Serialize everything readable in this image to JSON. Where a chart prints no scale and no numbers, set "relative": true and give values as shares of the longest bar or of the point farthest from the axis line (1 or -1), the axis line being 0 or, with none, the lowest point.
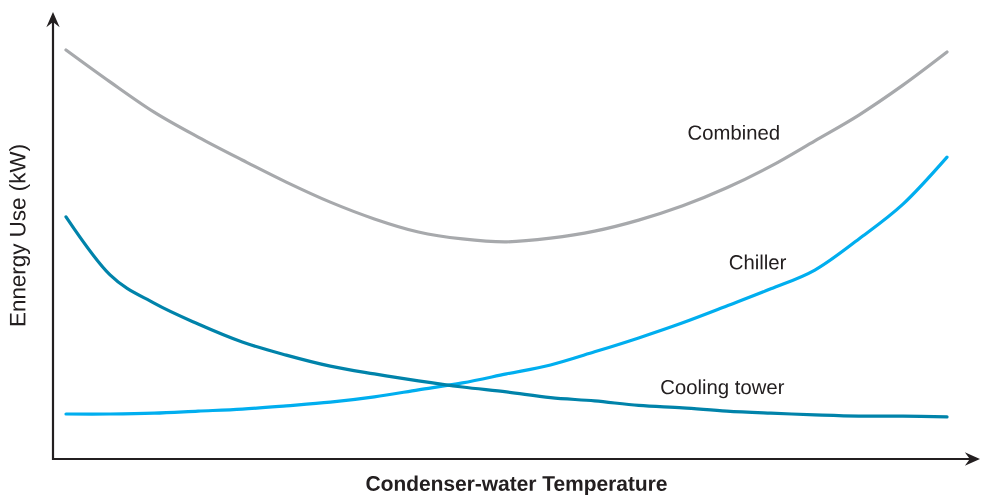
{
  "chart_data": {
    "type": "line",
    "relative": true,
    "xlabel": "Condenser-water Temperature",
    "ylabel": "Ennergy Use (kW)",
    "categories": [
      null,
      null,
      null,
      null,
      null,
      null,
      null,
      null,
      null,
      null,
      null,
      null,
      null,
      null,
      null,
      null,
      null,
      null,
      null,
      null,
      null
    ],
    "marker": "none",
    "line_style": "solid",
    "series": [
      {
        "name": "Combined",
        "color": "#a7a9ac",
        "values": [
          1.0,
          0.922,
          0.848,
          0.787,
          0.731,
          0.677,
          0.628,
          0.587,
          0.555,
          0.538,
          0.531,
          0.54,
          0.557,
          0.584,
          0.619,
          0.663,
          0.716,
          0.778,
          0.841,
          0.914,
          0.995
        ]
      },
      {
        "name": "Chiller",
        "color": "#00aeef",
        "values": [
          0.11,
          0.11,
          0.112,
          0.117,
          0.122,
          0.13,
          0.139,
          0.152,
          0.169,
          0.186,
          0.208,
          0.23,
          0.262,
          0.296,
          0.333,
          0.374,
          0.416,
          0.462,
          0.538,
          0.623,
          0.738
        ]
      },
      {
        "name": "Cooling tower",
        "color": "#0083aa",
        "values": [
          0.592,
          0.45,
          0.381,
          0.33,
          0.286,
          0.254,
          0.227,
          0.208,
          0.191,
          0.176,
          0.164,
          0.15,
          0.142,
          0.131,
          0.125,
          0.117,
          0.112,
          0.108,
          0.105,
          0.105,
          0.103
        ]
      }
    ]
  }
}
